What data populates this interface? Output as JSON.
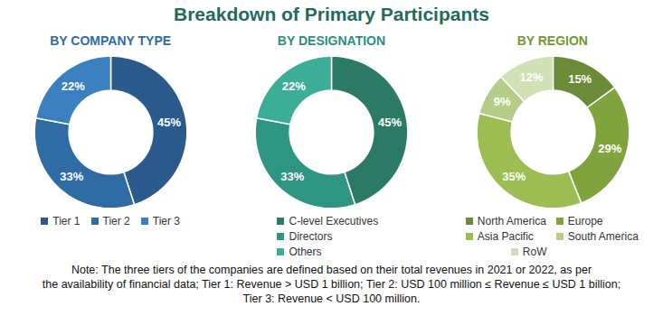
{
  "title": "Breakdown of Primary Participants",
  "note": [
    "Note: The three tiers of the companies are defined based on their total revenues in 2021 or 2022, as per",
    "the availability of financial data; Tier 1: Revenue > USD 1 billion; Tier 2: USD 100 million ≤ Revenue ≤ USD 1 billion;",
    "Tier 3: Revenue < USD 100 million."
  ],
  "chart_data": [
    {
      "type": "pie",
      "title": "BY COMPANY TYPE",
      "categories": [
        "Tier 1",
        "Tier 2",
        "Tier 3"
      ],
      "values": [
        45,
        33,
        22
      ],
      "value_labels": [
        "45%",
        "33%",
        "22%"
      ],
      "colors": [
        "#2b5b8c",
        "#2f6ca6",
        "#3a80c0"
      ],
      "data_labels": true,
      "legend": "bottom"
    },
    {
      "type": "pie",
      "title": "BY DESIGNATION",
      "categories": [
        "C-level Executives",
        "Directors",
        "Others"
      ],
      "values": [
        45,
        33,
        22
      ],
      "value_labels": [
        "45%",
        "33%",
        "22%"
      ],
      "colors": [
        "#2a7a66",
        "#2e9583",
        "#3cae98"
      ],
      "data_labels": true,
      "legend": "bottom"
    },
    {
      "type": "pie",
      "title": "BY REGION",
      "categories": [
        "North America",
        "Europe",
        "Asia Pacific",
        "South America",
        "RoW"
      ],
      "values": [
        15,
        29,
        35,
        9,
        12
      ],
      "value_labels": [
        "15%",
        "29%",
        "35%",
        "9%",
        "12%"
      ],
      "colors": [
        "#6a8c38",
        "#7fa33d",
        "#9cbd52",
        "#b6cd88",
        "#d2e0b6"
      ],
      "data_labels": true,
      "legend": "bottom"
    }
  ]
}
